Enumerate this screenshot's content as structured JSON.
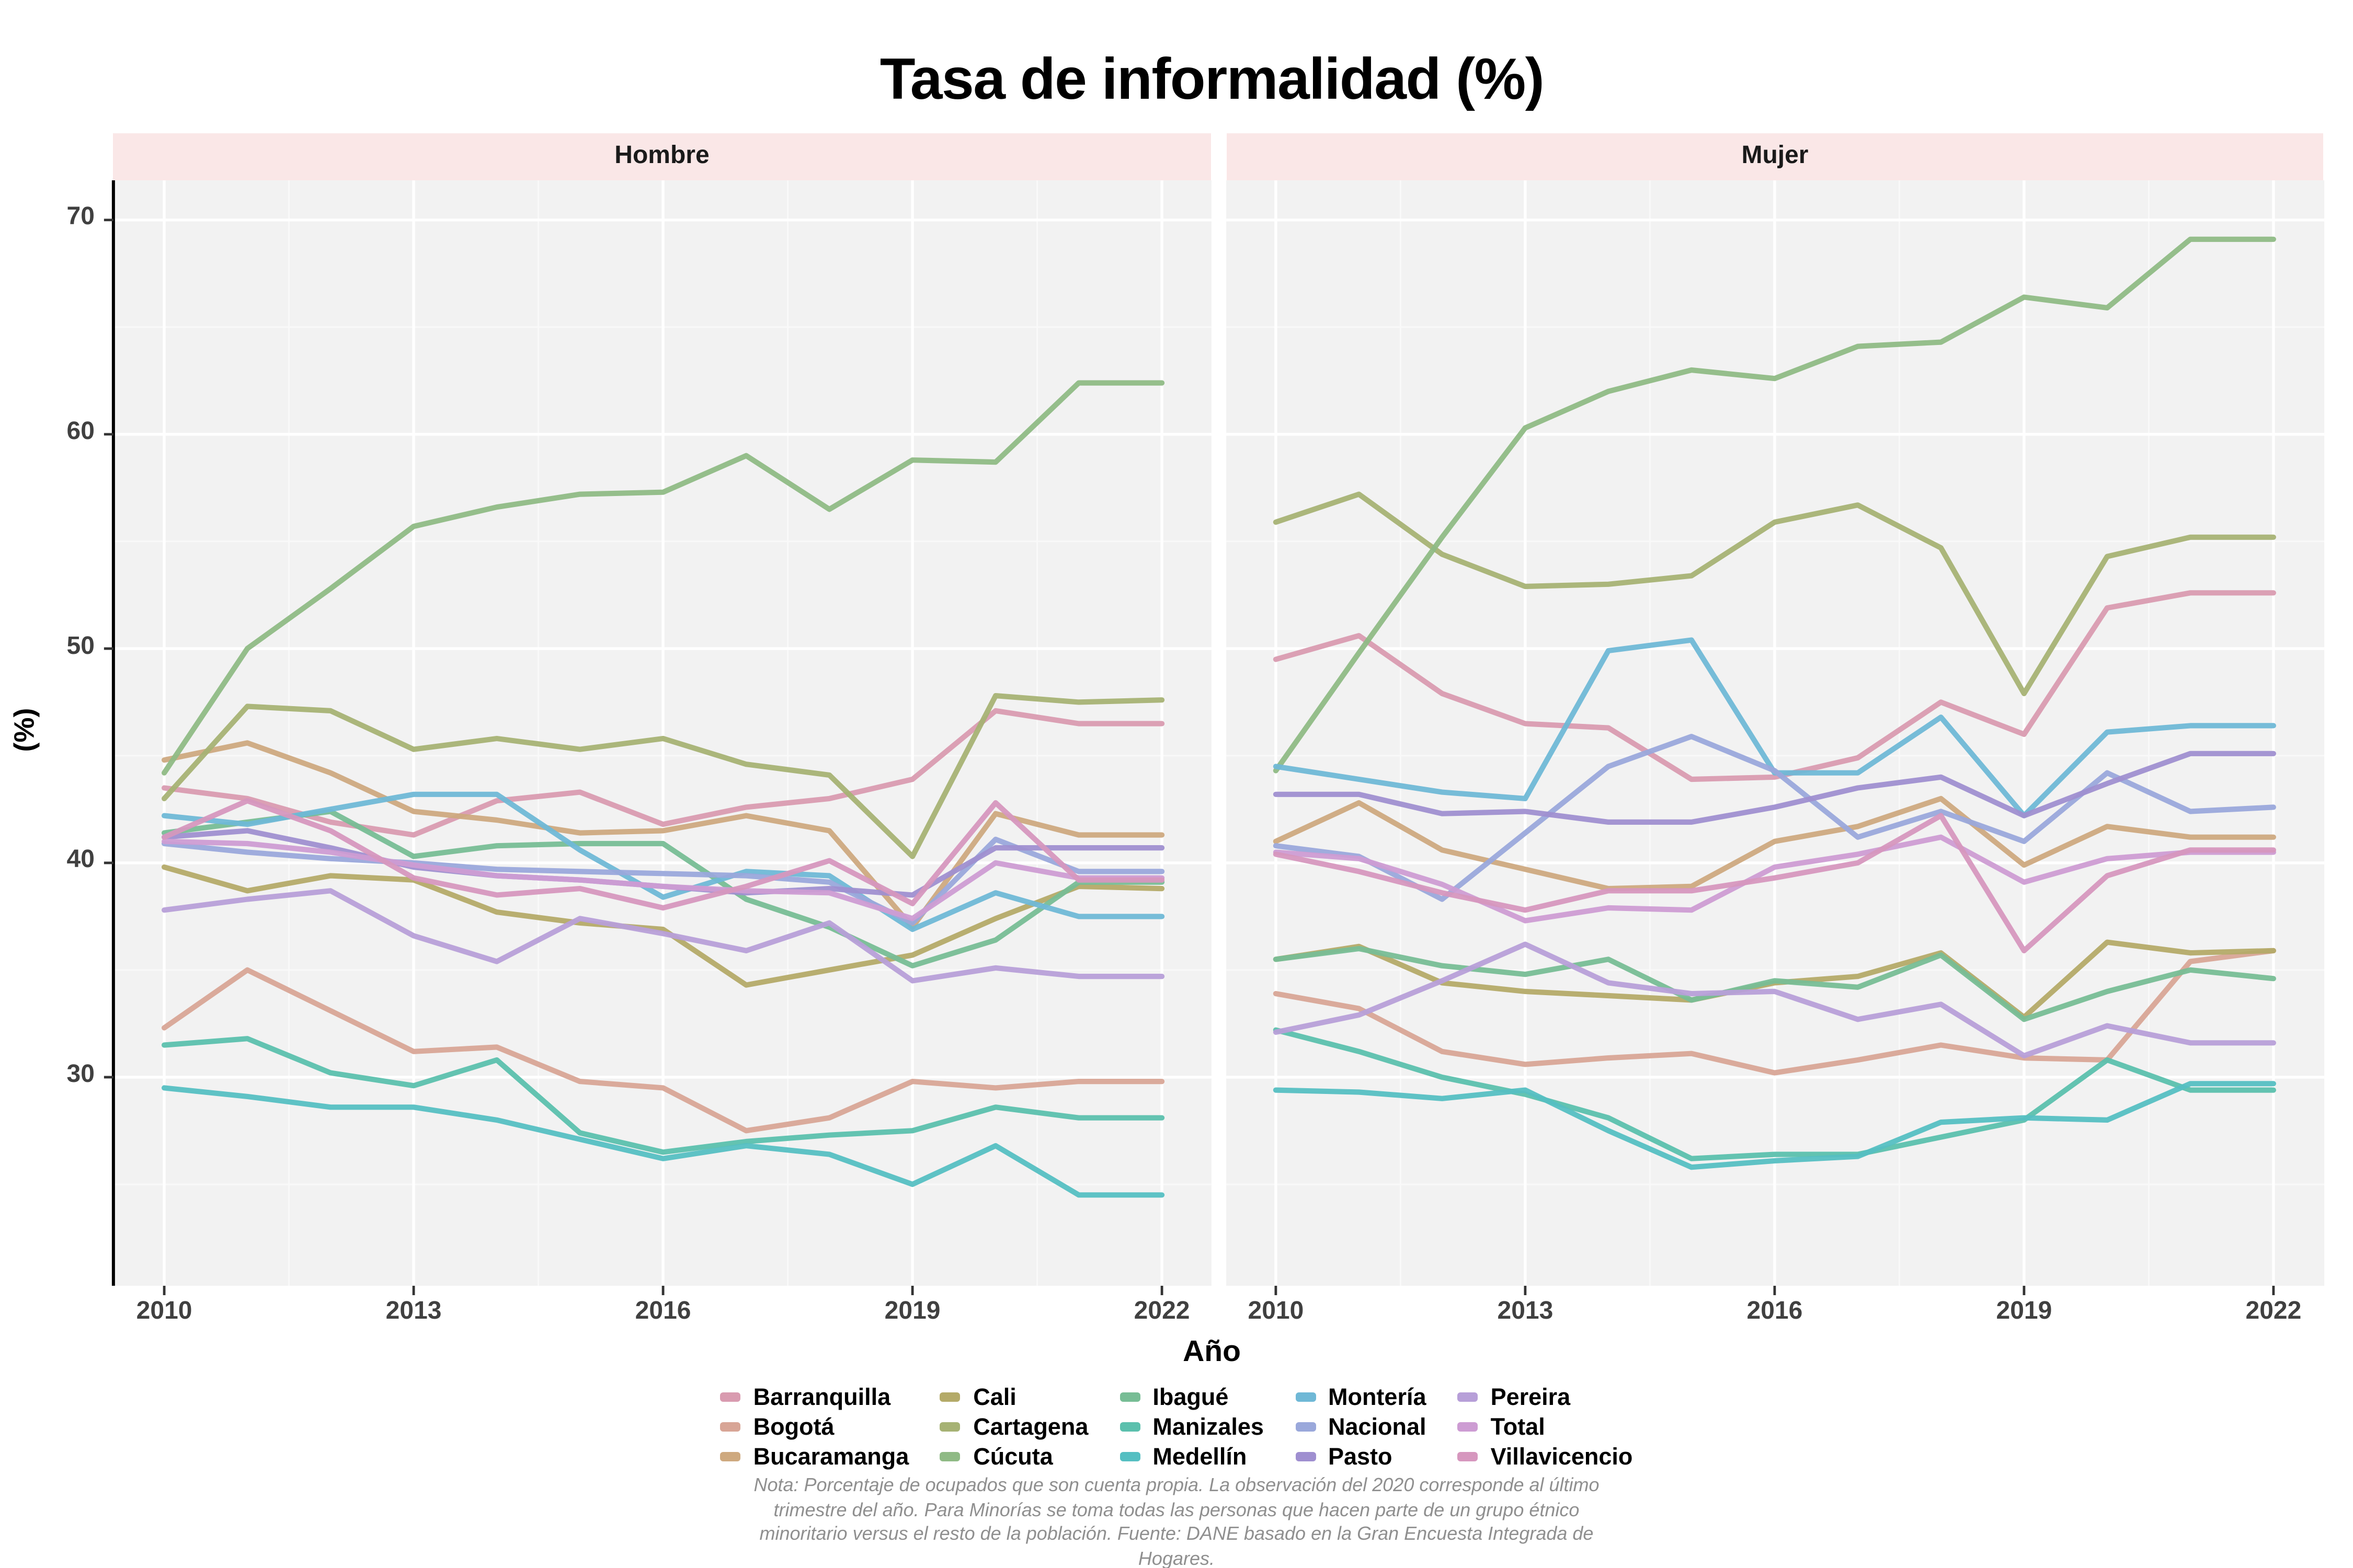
{
  "title": "Tasa de informalidad (%)",
  "x_axis": {
    "label": "Año",
    "tick_years": [
      2010,
      2013,
      2016,
      2019,
      2022
    ]
  },
  "y_axis": {
    "label": "(%)",
    "tick_values": [
      70,
      60,
      50,
      40,
      30
    ]
  },
  "note_lines": [
    "Nota: Porcentaje de ocupados que son cuenta propia. La observación del 2020 corresponde al último",
    "trimestre del año. Para Minorías se toma todas las personas que hacen parte de un grupo étnico",
    "minoritario versus el resto de la población. Fuente: DANE basado en la Gran Encuesta Integrada de",
    "Hogares."
  ],
  "colors": {
    "strip_background": "#FAE7E7",
    "panel_background": "#F2F2F2",
    "grid_major": "#FFFFFF",
    "grid_minor": "#F9F9F9",
    "axis_text": "#404040",
    "note_text": "#8F8F8F",
    "spine": "#000000"
  },
  "chart_data": {
    "type": "line",
    "x": [
      2010,
      2011,
      2012,
      2013,
      2014,
      2015,
      2016,
      2017,
      2018,
      2019,
      2020,
      2021,
      2022
    ],
    "xlim": [
      2009.4,
      2022.6
    ],
    "ylim": [
      20.3,
      71.9
    ],
    "grid": "on",
    "legend_position": "bottom",
    "facets": [
      {
        "name": "Hombre",
        "series": [
          {
            "name": "Barranquilla",
            "color": "#D99BB0",
            "values": [
              43.5,
              43.0,
              41.9,
              41.3,
              42.9,
              43.3,
              41.8,
              42.6,
              43.0,
              43.9,
              47.1,
              46.5,
              46.5
            ]
          },
          {
            "name": "Bogotá",
            "color": "#D8A596",
            "values": [
              32.3,
              35.0,
              33.1,
              31.2,
              31.4,
              29.8,
              29.5,
              27.5,
              28.1,
              29.8,
              29.5,
              29.8,
              29.8
            ]
          },
          {
            "name": "Bucaramanga",
            "color": "#CEA97F",
            "values": [
              44.8,
              45.6,
              44.2,
              42.4,
              42.0,
              41.4,
              41.5,
              42.2,
              41.5,
              37.0,
              42.3,
              41.3,
              41.3
            ]
          },
          {
            "name": "Cali",
            "color": "#B4AA68",
            "values": [
              39.8,
              38.7,
              39.4,
              39.2,
              37.7,
              37.2,
              36.9,
              34.3,
              35.0,
              35.7,
              37.4,
              38.9,
              38.8
            ]
          },
          {
            "name": "Cartagena",
            "color": "#A6B274",
            "values": [
              43.0,
              47.3,
              47.1,
              45.3,
              45.8,
              45.3,
              45.8,
              44.6,
              44.1,
              40.3,
              47.8,
              47.5,
              47.6
            ]
          },
          {
            "name": "Cúcuta",
            "color": "#8FBA85",
            "values": [
              44.2,
              50.0,
              52.8,
              55.7,
              56.6,
              57.2,
              57.3,
              59.0,
              56.5,
              58.8,
              58.7,
              62.4,
              62.4
            ]
          },
          {
            "name": "Ibagué",
            "color": "#77BD95",
            "values": [
              41.4,
              41.9,
              42.4,
              40.3,
              40.8,
              40.9,
              40.9,
              38.3,
              37.0,
              35.2,
              36.4,
              39.1,
              39.1
            ]
          },
          {
            "name": "Manizales",
            "color": "#5BC0AD",
            "values": [
              31.5,
              31.8,
              30.2,
              29.6,
              30.8,
              27.4,
              26.5,
              27.0,
              27.3,
              27.5,
              28.6,
              28.1,
              28.1
            ]
          },
          {
            "name": "Medellín",
            "color": "#55BFC2",
            "values": [
              29.5,
              29.1,
              28.6,
              28.6,
              28.0,
              27.1,
              26.2,
              26.8,
              26.4,
              25.0,
              26.8,
              24.5,
              24.5
            ]
          },
          {
            "name": "Montería",
            "color": "#6FB8D6",
            "values": [
              42.2,
              41.8,
              42.5,
              43.2,
              43.2,
              40.6,
              38.4,
              39.6,
              39.4,
              36.9,
              38.6,
              37.5,
              37.5
            ]
          },
          {
            "name": "Nacional",
            "color": "#9AA8DB",
            "values": [
              40.9,
              40.5,
              40.2,
              40.0,
              39.7,
              39.6,
              39.5,
              39.4,
              39.1,
              37.2,
              41.1,
              39.6,
              39.6
            ]
          },
          {
            "name": "Pasto",
            "color": "#9F8FD0",
            "values": [
              41.2,
              41.5,
              40.7,
              39.8,
              39.4,
              39.2,
              38.9,
              38.6,
              38.8,
              38.5,
              40.7,
              40.7,
              40.7
            ]
          },
          {
            "name": "Pereira",
            "color": "#B79FD8",
            "values": [
              37.8,
              38.3,
              38.7,
              36.6,
              35.4,
              37.4,
              36.7,
              35.9,
              37.2,
              34.5,
              35.1,
              34.7,
              34.7
            ]
          },
          {
            "name": "Total",
            "color": "#CD9CD3",
            "values": [
              41.0,
              40.9,
              40.5,
              39.9,
              39.4,
              39.2,
              38.9,
              38.7,
              38.6,
              37.4,
              40.0,
              39.3,
              39.3
            ]
          },
          {
            "name": "Villavicencio",
            "color": "#D697BE",
            "values": [
              41.2,
              42.9,
              41.5,
              39.3,
              38.5,
              38.8,
              37.9,
              38.9,
              40.1,
              38.1,
              42.8,
              39.2,
              39.2
            ]
          }
        ]
      },
      {
        "name": "Mujer",
        "series": [
          {
            "name": "Barranquilla",
            "color": "#D99BB0",
            "values": [
              49.5,
              50.6,
              47.9,
              46.5,
              46.3,
              43.9,
              44.0,
              44.9,
              47.5,
              46.0,
              51.9,
              52.6,
              52.6
            ]
          },
          {
            "name": "Bogotá",
            "color": "#D8A596",
            "values": [
              33.9,
              33.2,
              31.2,
              30.6,
              30.9,
              31.1,
              30.2,
              30.8,
              31.5,
              30.9,
              30.8,
              35.4,
              35.9
            ]
          },
          {
            "name": "Bucaramanga",
            "color": "#CEA97F",
            "values": [
              41.0,
              42.8,
              40.6,
              39.7,
              38.8,
              38.9,
              41.0,
              41.7,
              43.0,
              39.9,
              41.7,
              41.2,
              41.2
            ]
          },
          {
            "name": "Cali",
            "color": "#B4AA68",
            "values": [
              35.5,
              36.1,
              34.4,
              34.0,
              33.8,
              33.6,
              34.4,
              34.7,
              35.8,
              32.8,
              36.3,
              35.8,
              35.9
            ]
          },
          {
            "name": "Cartagena",
            "color": "#A6B274",
            "values": [
              55.9,
              57.2,
              54.4,
              52.9,
              53.0,
              53.4,
              55.9,
              56.7,
              54.7,
              47.9,
              54.3,
              55.2,
              55.2
            ]
          },
          {
            "name": "Cúcuta",
            "color": "#8FBA85",
            "values": [
              44.3,
              49.8,
              55.2,
              60.3,
              62.0,
              63.0,
              62.6,
              64.1,
              64.3,
              66.4,
              65.9,
              69.1,
              69.1
            ]
          },
          {
            "name": "Ibagué",
            "color": "#77BD95",
            "values": [
              35.5,
              36.0,
              35.2,
              34.8,
              35.5,
              33.6,
              34.5,
              34.2,
              35.7,
              32.7,
              34.0,
              35.0,
              34.6
            ]
          },
          {
            "name": "Manizales",
            "color": "#5BC0AD",
            "values": [
              32.2,
              31.2,
              30.0,
              29.2,
              28.1,
              26.2,
              26.4,
              26.4,
              27.2,
              28.0,
              30.8,
              29.4,
              29.4
            ]
          },
          {
            "name": "Medellín",
            "color": "#55BFC2",
            "values": [
              29.4,
              29.3,
              29.0,
              29.4,
              27.5,
              25.8,
              26.1,
              26.3,
              27.9,
              28.1,
              28.0,
              29.7,
              29.7
            ]
          },
          {
            "name": "Montería",
            "color": "#6FB8D6",
            "values": [
              44.5,
              43.9,
              43.3,
              43.0,
              49.9,
              50.4,
              44.2,
              44.2,
              46.8,
              42.2,
              46.1,
              46.4,
              46.4
            ]
          },
          {
            "name": "Nacional",
            "color": "#9AA8DB",
            "values": [
              40.8,
              40.3,
              38.3,
              41.4,
              44.5,
              45.9,
              44.3,
              41.2,
              42.4,
              41.0,
              44.2,
              42.4,
              42.6
            ]
          },
          {
            "name": "Pasto",
            "color": "#9F8FD0",
            "values": [
              43.2,
              43.2,
              42.3,
              42.4,
              41.9,
              41.9,
              42.6,
              43.5,
              44.0,
              42.2,
              43.7,
              45.1,
              45.1
            ]
          },
          {
            "name": "Pereira",
            "color": "#B79FD8",
            "values": [
              32.1,
              32.9,
              34.5,
              36.2,
              34.4,
              33.9,
              34.0,
              32.7,
              33.4,
              31.0,
              32.4,
              31.6,
              31.6
            ]
          },
          {
            "name": "Total",
            "color": "#CD9CD3",
            "values": [
              40.5,
              40.2,
              39.0,
              37.3,
              37.9,
              37.8,
              39.8,
              40.4,
              41.2,
              39.1,
              40.2,
              40.5,
              40.5
            ]
          },
          {
            "name": "Villavicencio",
            "color": "#D697BE",
            "values": [
              40.4,
              39.6,
              38.6,
              37.8,
              38.7,
              38.7,
              39.3,
              40.0,
              42.2,
              35.9,
              39.4,
              40.6,
              40.6
            ]
          }
        ]
      }
    ]
  }
}
